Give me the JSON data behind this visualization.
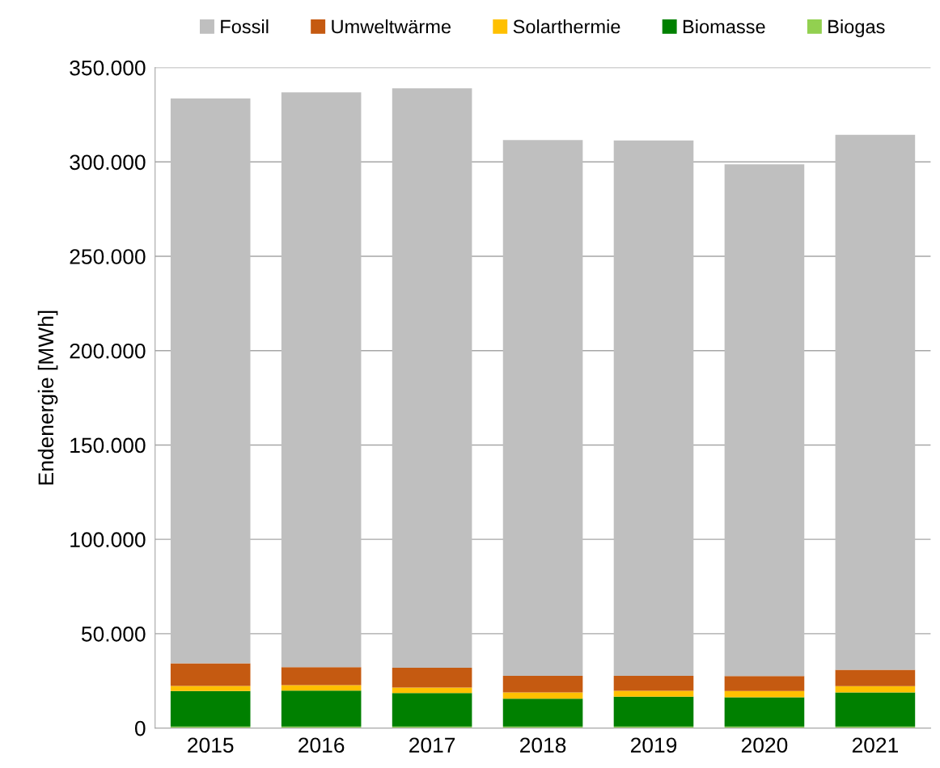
{
  "chart_data": {
    "type": "bar",
    "stacked": true,
    "ylabel": "Endenergie [MWh]",
    "categories": [
      "2015",
      "2016",
      "2017",
      "2018",
      "2019",
      "2020",
      "2021"
    ],
    "series": [
      {
        "name": "Biogas",
        "color": "#92d050",
        "values": [
          800,
          800,
          800,
          800,
          800,
          800,
          800
        ]
      },
      {
        "name": "Biomasse",
        "color": "#008000",
        "values": [
          18800,
          19100,
          17800,
          14800,
          15800,
          15500,
          18100
        ]
      },
      {
        "name": "Solarthermie",
        "color": "#ffc000",
        "values": [
          2700,
          2800,
          2900,
          3300,
          3100,
          3300,
          3300
        ]
      },
      {
        "name": "Umweltwärme",
        "color": "#c55a11",
        "values": [
          12000,
          9600,
          10500,
          8800,
          8000,
          8000,
          8700
        ]
      },
      {
        "name": "Fossil",
        "color": "#bfbfbf",
        "values": [
          299400,
          304600,
          307000,
          283900,
          283700,
          271100,
          283500
        ]
      }
    ],
    "ylim": [
      0,
      350000
    ],
    "yticks": [
      0,
      {
        "value": 50000,
        "label": "50.000"
      },
      {
        "value": 100000,
        "label": "100.000"
      },
      {
        "value": 150000,
        "label": "150.000"
      },
      {
        "value": 200000,
        "label": "200.000"
      },
      {
        "value": 250000,
        "label": "250.000"
      },
      {
        "value": 300000,
        "label": "300.000"
      },
      {
        "value": 350000,
        "label": "350.000"
      }
    ],
    "grid": "y",
    "legend": "top"
  }
}
